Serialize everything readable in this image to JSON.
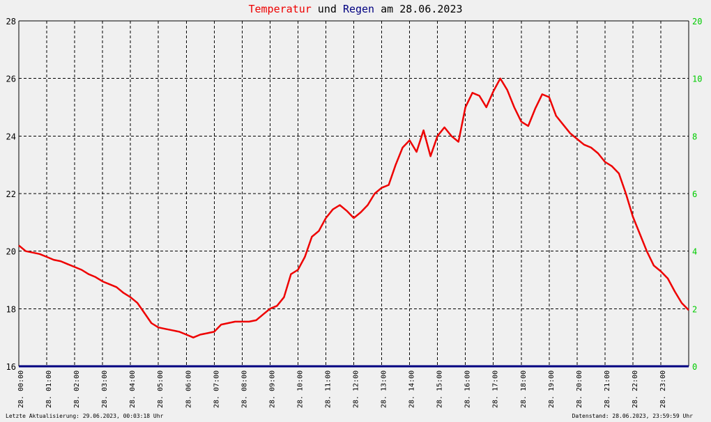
{
  "title": {
    "part1": "Temperatur",
    "part2": " und ",
    "part3": "Regen",
    "part4": " am 28.06.2023"
  },
  "colors": {
    "temperature": "#ee0000",
    "rain": "#000080",
    "right_axis_text": "#00cc00",
    "left_axis_text": "#000000",
    "grid": "#000000",
    "background": "#f0f0f0"
  },
  "footer": {
    "left": "Letzte Aktualisierung: 29.06.2023, 00:03:18 Uhr",
    "right": "Datenstand: 28.06.2023, 23:59:59 Uhr"
  },
  "chart_data": {
    "type": "line",
    "y_left_ticks": [
      "16",
      "18",
      "20",
      "22",
      "24",
      "26",
      "28"
    ],
    "y_left_range": [
      16,
      28
    ],
    "y_right_ticks": [
      "0",
      "2",
      "4",
      "6",
      "8",
      "10",
      "20"
    ],
    "x_ticks": [
      "28. 00:00",
      "28. 01:00",
      "28. 02:00",
      "28. 03:00",
      "28. 04:00",
      "28. 05:00",
      "28. 06:00",
      "28. 07:00",
      "28. 08:00",
      "28. 09:00",
      "28. 10:00",
      "28. 11:00",
      "28. 12:00",
      "28. 13:00",
      "28. 14:00",
      "28. 15:00",
      "28. 16:00",
      "28. 17:00",
      "28. 18:00",
      "28. 19:00",
      "28. 20:00",
      "28. 21:00",
      "28. 22:00",
      "28. 23:00"
    ],
    "x_range_hours": [
      0,
      24
    ],
    "grid": true,
    "series": [
      {
        "name": "Temperatur",
        "x": [
          0.0,
          0.25,
          0.5,
          0.75,
          1.0,
          1.25,
          1.5,
          1.75,
          2.0,
          2.25,
          2.5,
          2.75,
          3.0,
          3.25,
          3.5,
          3.75,
          4.0,
          4.25,
          4.5,
          4.75,
          5.0,
          5.25,
          5.5,
          5.75,
          6.0,
          6.25,
          6.5,
          6.75,
          7.0,
          7.25,
          7.5,
          7.75,
          8.0,
          8.25,
          8.5,
          8.75,
          9.0,
          9.25,
          9.5,
          9.75,
          10.0,
          10.25,
          10.5,
          10.75,
          11.0,
          11.25,
          11.5,
          11.75,
          12.0,
          12.25,
          12.5,
          12.75,
          13.0,
          13.25,
          13.5,
          13.75,
          14.0,
          14.25,
          14.5,
          14.75,
          15.0,
          15.25,
          15.5,
          15.75,
          16.0,
          16.25,
          16.5,
          16.75,
          17.0,
          17.25,
          17.5,
          17.75,
          18.0,
          18.25,
          18.5,
          18.75,
          19.0,
          19.25,
          19.5,
          19.75,
          20.0,
          20.25,
          20.5,
          20.75,
          21.0,
          21.25,
          21.5,
          21.75,
          22.0,
          22.25,
          22.5,
          22.75,
          23.0,
          23.25,
          23.5,
          23.75,
          24.0
        ],
        "values": [
          20.2,
          20.0,
          19.95,
          19.9,
          19.8,
          19.7,
          19.65,
          19.55,
          19.45,
          19.35,
          19.2,
          19.1,
          18.95,
          18.85,
          18.75,
          18.55,
          18.4,
          18.2,
          17.85,
          17.5,
          17.35,
          17.3,
          17.25,
          17.2,
          17.1,
          17.0,
          17.1,
          17.15,
          17.2,
          17.45,
          17.5,
          17.55,
          17.55,
          17.55,
          17.6,
          17.8,
          18.0,
          18.1,
          18.4,
          19.2,
          19.35,
          19.8,
          20.5,
          20.7,
          21.15,
          21.45,
          21.6,
          21.4,
          21.15,
          21.35,
          21.6,
          22.0,
          22.2,
          22.3,
          23.0,
          23.6,
          23.85,
          23.45,
          24.2,
          23.3,
          24.0,
          24.3,
          24.0,
          23.8,
          25.0,
          25.5,
          25.4,
          25.0,
          25.55,
          26.0,
          25.6,
          25.0,
          24.5,
          24.35,
          24.95,
          25.45,
          25.35,
          24.7,
          24.4,
          24.1,
          23.9,
          23.7,
          23.6,
          23.4,
          23.1,
          22.95,
          22.7,
          22.0,
          21.2,
          20.6,
          20.0,
          19.5,
          19.3,
          19.05,
          18.6,
          18.2,
          17.95
        ]
      },
      {
        "name": "Regen",
        "x": [
          0,
          24
        ],
        "values": [
          0,
          0
        ]
      }
    ]
  }
}
